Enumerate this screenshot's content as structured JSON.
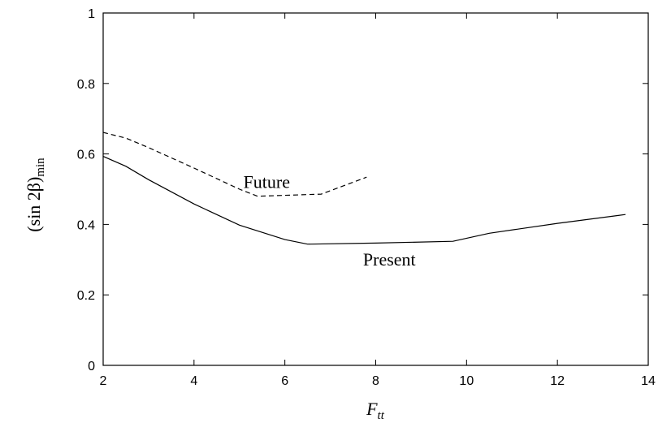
{
  "chart_data": {
    "type": "line",
    "xlabel": "F",
    "xlabel_sub": "tt",
    "ylabel": "(sin 2β)",
    "ylabel_sub": "min",
    "xlim": [
      2,
      14
    ],
    "ylim": [
      0,
      1
    ],
    "xticks": [
      2,
      4,
      6,
      8,
      10,
      12,
      14
    ],
    "yticks": [
      0,
      0.2,
      0.4,
      0.6,
      0.8,
      1
    ],
    "ytick_labels": [
      "0",
      "0.2",
      "0.4",
      "0.6",
      "0.8",
      "1"
    ],
    "grid": false,
    "legend": "none",
    "series": [
      {
        "name": "Present",
        "style": "solid",
        "color": "#000000",
        "x": [
          2.0,
          2.5,
          3.0,
          4.0,
          5.0,
          6.0,
          6.5,
          8.0,
          9.7,
          10.5,
          12.0,
          13.5
        ],
        "y": [
          0.593,
          0.565,
          0.527,
          0.458,
          0.398,
          0.357,
          0.344,
          0.347,
          0.352,
          0.375,
          0.403,
          0.428
        ],
        "label_at": [
          8.3,
          0.3
        ]
      },
      {
        "name": "Future",
        "style": "dashed",
        "color": "#000000",
        "x": [
          2.0,
          2.5,
          3.0,
          4.0,
          5.0,
          5.4,
          6.8,
          7.8
        ],
        "y": [
          0.661,
          0.645,
          0.618,
          0.56,
          0.5,
          0.48,
          0.486,
          0.534
        ],
        "label_at": [
          5.6,
          0.52
        ]
      }
    ]
  }
}
